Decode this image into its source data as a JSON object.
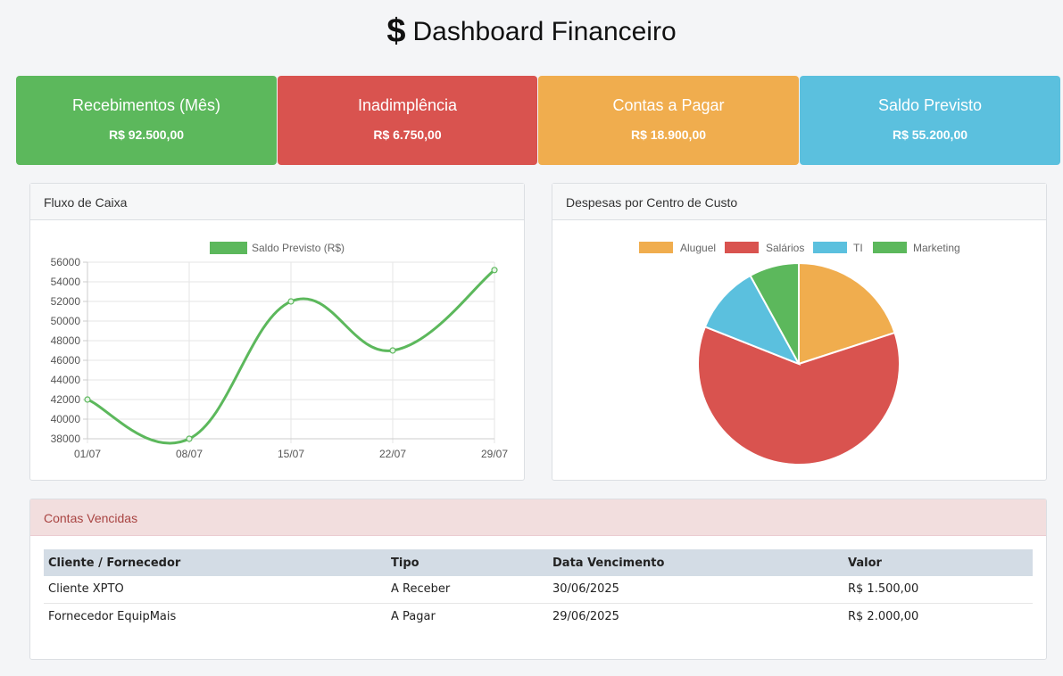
{
  "header": {
    "icon": "dollar-icon",
    "dollar": "$",
    "title": "Dashboard Financeiro"
  },
  "cards": [
    {
      "title": "Recebimentos (Mês)",
      "value": "R$ 92.500,00",
      "color": "#5cb85c"
    },
    {
      "title": "Inadimplência",
      "value": "R$ 6.750,00",
      "color": "#d9534f"
    },
    {
      "title": "Contas a Pagar",
      "value": "R$ 18.900,00",
      "color": "#f0ad4e"
    },
    {
      "title": "Saldo Previsto",
      "value": "R$ 55.200,00",
      "color": "#5bc0de"
    }
  ],
  "cash_flow": {
    "title": "Fluxo de Caixa",
    "chart_data": {
      "type": "line",
      "categories": [
        "01/07",
        "08/07",
        "15/07",
        "22/07",
        "29/07"
      ],
      "series": [
        {
          "name": "Saldo Previsto (R$)",
          "values": [
            42000,
            38000,
            52000,
            47000,
            55200
          ],
          "color": "#5cb85c"
        }
      ],
      "ylim": [
        38000,
        56000
      ],
      "yticks": [
        38000,
        40000,
        42000,
        44000,
        46000,
        48000,
        50000,
        52000,
        54000,
        56000
      ],
      "grid": true,
      "legend": "top"
    }
  },
  "expenses": {
    "title": "Despesas por Centro de Custo",
    "chart_data": {
      "type": "pie",
      "categories": [
        "Aluguel",
        "Salários",
        "TI",
        "Marketing"
      ],
      "values": [
        20,
        61,
        11,
        8
      ],
      "colors": [
        "#f0ad4e",
        "#d9534f",
        "#5bc0de",
        "#5cb85c"
      ],
      "legend": "top"
    }
  },
  "overdue": {
    "title": "Contas Vencidas",
    "columns": [
      "Cliente / Fornecedor",
      "Tipo",
      "Data Vencimento",
      "Valor"
    ],
    "rows": [
      [
        "Cliente XPTO",
        "A Receber",
        "30/06/2025",
        "R$ 1.500,00"
      ],
      [
        "Fornecedor EquipMais",
        "A Pagar",
        "29/06/2025",
        "R$ 2.000,00"
      ]
    ]
  }
}
